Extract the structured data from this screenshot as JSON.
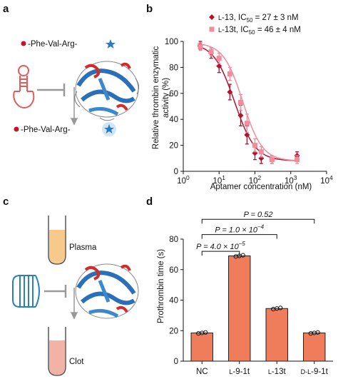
{
  "panels": {
    "a": "a",
    "b": "b",
    "c": "c",
    "d": "d"
  },
  "scheme_a": {
    "substrate_label": "-Phe-Val-Arg-",
    "product_label": "-Phe-Val-Arg-"
  },
  "scheme_c": {
    "plasma_label": "Plasma",
    "clot_label": "Clot"
  },
  "colors": {
    "l13": "#b5122e",
    "l13t": "#f28b9b",
    "bar_fill": "#ef7c5a",
    "bar_edge": "#222222",
    "aptamer_red": "#e55a5a",
    "aptamer_blue": "#2a7fc1",
    "plasma_fill": "#f7c98b",
    "clot_fill": "#f2b3a6"
  },
  "chart_data": [
    {
      "type": "scatter",
      "xscale": "log",
      "xlabel": "Aptamer concentration (nM)",
      "ylabel": "Relative thrombin enzymatic activity (%)",
      "ylabel_lines": [
        "Relative thrombin enzymatic",
        "activity (%)"
      ],
      "xlim": [
        1,
        10000
      ],
      "ylim": [
        0,
        100
      ],
      "xticks": [
        {
          "value": 1,
          "base": "10",
          "exp": "0"
        },
        {
          "value": 10,
          "base": "10",
          "exp": "1"
        },
        {
          "value": 100,
          "base": "10",
          "exp": "2"
        },
        {
          "value": 1000,
          "base": "10",
          "exp": "3"
        },
        {
          "value": 10000,
          "base": "10",
          "exp": "4"
        }
      ],
      "yticks": [
        0,
        20,
        40,
        60,
        80,
        100
      ],
      "legend_position": "top-right",
      "series": [
        {
          "name": "L-13",
          "legend_prefix": "L",
          "legend_main": "-13, IC",
          "legend_sub": "50",
          "legend_rest": " = 27 ± 3 nM",
          "marker": "diamond",
          "color": "#b5122e",
          "x": [
            3,
            6,
            10,
            20,
            40,
            60,
            100,
            150,
            300,
            1500
          ],
          "y": [
            97,
            91,
            81,
            61,
            43,
            28,
            14,
            10,
            9,
            12
          ],
          "err": [
            3,
            4,
            5,
            6,
            8,
            7,
            5,
            4,
            3,
            3
          ],
          "fit": {
            "top": 99,
            "bottom": 8,
            "ic50": 27,
            "hill": 1.5
          }
        },
        {
          "name": "L-13t",
          "legend_prefix": "L",
          "legend_main": "-13t, IC",
          "legend_sub": "50",
          "legend_rest": " = 46 ± 4 nM",
          "marker": "square",
          "color": "#f28b9b",
          "x": [
            3,
            6,
            10,
            20,
            40,
            60,
            100,
            150,
            300,
            1500
          ],
          "y": [
            96,
            92,
            87,
            75,
            53,
            37,
            20,
            15,
            9,
            9
          ],
          "err": [
            3,
            3,
            4,
            5,
            6,
            7,
            5,
            4,
            3,
            3
          ],
          "fit": {
            "top": 99,
            "bottom": 8,
            "ic50": 46,
            "hill": 1.6
          }
        }
      ]
    },
    {
      "type": "bar",
      "ylabel": "Prothrombin time (s)",
      "ylim": [
        0,
        80
      ],
      "yticks": [
        0,
        20,
        40,
        60,
        80
      ],
      "categories": [
        "NC",
        "L-9-1t",
        "L-13t",
        "D-L-9-1t"
      ],
      "category_labels": [
        {
          "pre": "",
          "main": "NC"
        },
        {
          "pre": "L",
          "main": "-9-1t"
        },
        {
          "pre": "L",
          "main": "-13t"
        },
        {
          "pre": "D-L",
          "main": "-9-1t"
        }
      ],
      "values": [
        18.5,
        69,
        34.5,
        18.5
      ],
      "replicates": [
        [
          18.2,
          18.5,
          18.8
        ],
        [
          68.6,
          69.0,
          69.4
        ],
        [
          34.1,
          34.5,
          34.9
        ],
        [
          18.2,
          18.5,
          18.8
        ]
      ],
      "significance": [
        {
          "from": 0,
          "to": 1,
          "label": "P = 4.0 × 10",
          "exp": "−5"
        },
        {
          "from": 0,
          "to": 2,
          "label": "P = 1.0 × 10",
          "exp": "−4"
        },
        {
          "from": 0,
          "to": 3,
          "label": "P = 0.52",
          "exp": ""
        }
      ]
    }
  ]
}
